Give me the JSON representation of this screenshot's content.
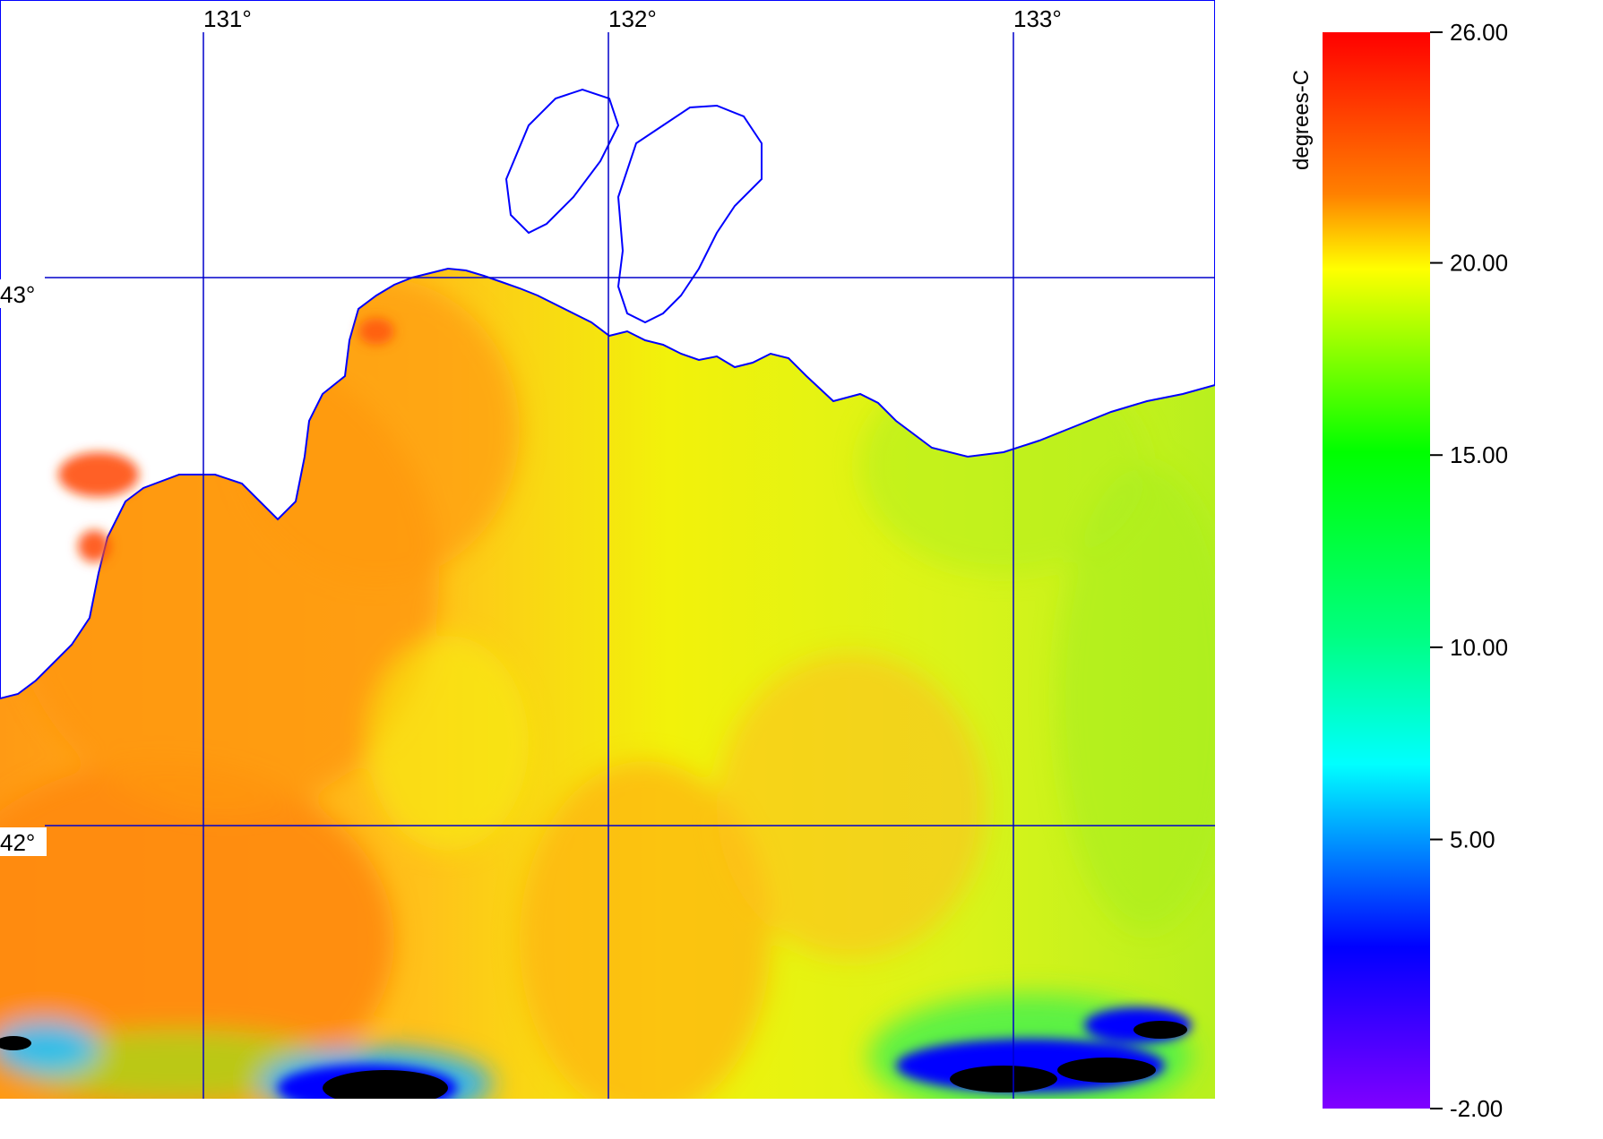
{
  "map": {
    "longitude_labels": [
      "131°",
      "132°",
      "133°"
    ],
    "latitude_labels": [
      "43°",
      "42°"
    ],
    "land_color": "#ffffff",
    "coastline_color": "#0000ff",
    "grid_color": "#0000cc",
    "cloud_color": "#000000"
  },
  "colorbar": {
    "title": "degrees-C",
    "min": -2.0,
    "max": 26.0,
    "ticks": [
      {
        "value": 26.0,
        "label": "26.00"
      },
      {
        "value": 20.0,
        "label": "20.00"
      },
      {
        "value": 15.0,
        "label": "15.00"
      },
      {
        "value": 10.0,
        "label": "10.00"
      },
      {
        "value": 5.0,
        "label": "5.00"
      },
      {
        "value": -2.0,
        "label": "-2.00"
      }
    ],
    "colors": [
      "#ff0000",
      "#ff8000",
      "#ffff00",
      "#00ff00",
      "#00ffff",
      "#0000ff",
      "#8000ff"
    ]
  }
}
